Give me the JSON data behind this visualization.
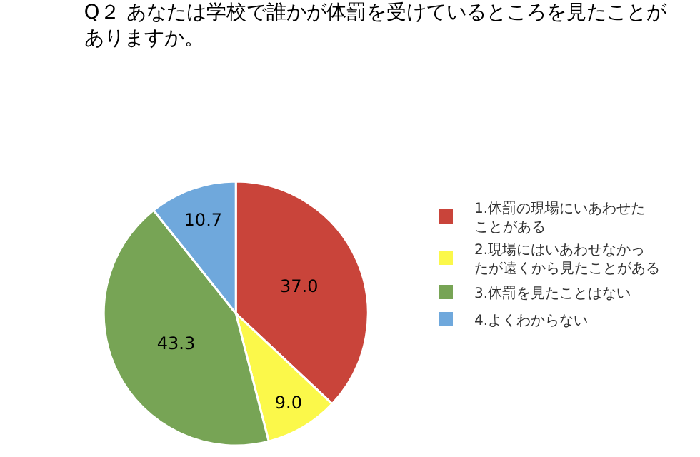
{
  "chart_data": {
    "type": "pie",
    "title": "Q２ あなたは学校で誰かが体罰を受けているところを見たことがありますか。",
    "categories": [
      "1.体罰の現場にいあわせたことがある",
      "2.現場にはいあわせなかったが遠くから見たことがある",
      "3.体罰を見たことはない",
      "4.よくわからない"
    ],
    "values": [
      37.0,
      9.0,
      43.3,
      10.7
    ],
    "value_labels": [
      "37.0",
      "9.0",
      "43.3",
      "10.7"
    ],
    "colors": [
      "#c9443a",
      "#fbf84a",
      "#77a455",
      "#6fa8dc"
    ],
    "legend": "right"
  }
}
